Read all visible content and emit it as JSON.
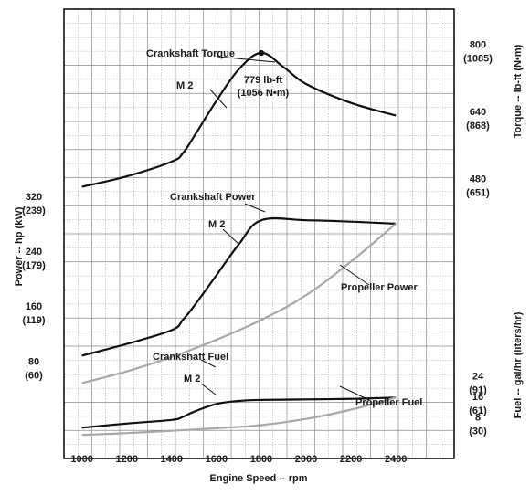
{
  "chart_data": {
    "type": "line",
    "xlabel": "Engine Speed -- rpm",
    "ylabel_left": "Power -- hp (kW)",
    "ylabel_right_top": "Torque -- lb-ft (N•m)",
    "ylabel_right_bottom": "Fuel -- gal/hr (liters/hr)",
    "xlim": [
      920,
      2660
    ],
    "x_ticks": [
      "1000",
      "1200",
      "1400",
      "1600",
      "1800",
      "2000",
      "2200",
      "2400"
    ],
    "grid": true,
    "colors": {
      "crankshaft": "#111111",
      "propeller": "#a8a8a8",
      "frame": "#111111"
    },
    "panels": {
      "torque": {
        "ylim": [
          300,
          840
        ],
        "ticks": [
          {
            "value": 800,
            "label": "800",
            "sub": "(1085)"
          },
          {
            "value": 640,
            "label": "640",
            "sub": "(868)"
          },
          {
            "value": 480,
            "label": "480",
            "sub": "(651)"
          }
        ],
        "series": [
          {
            "name": "Crankshaft Torque",
            "tag": "M 2",
            "style": "crankshaft",
            "x": [
              1000,
              1200,
              1400,
              1450,
              1500,
              1600,
              1700,
              1800,
              1900,
              2000,
              2200,
              2400
            ],
            "y": [
              460,
              485,
              520,
              540,
              580,
              665,
              740,
              779,
              745,
              705,
              660,
              630
            ]
          }
        ],
        "annotation": {
          "line1": "779 lb-ft",
          "line2": "(1056 N•m)",
          "x": 1800,
          "y": 779
        }
      },
      "power": {
        "ylim": [
          30,
          365
        ],
        "ticks": [
          {
            "value": 320,
            "label": "320",
            "sub": "(239)"
          },
          {
            "value": 240,
            "label": "240",
            "sub": "(179)"
          },
          {
            "value": 160,
            "label": "160",
            "sub": "(119)"
          },
          {
            "value": 80,
            "label": "80",
            "sub": "(60)"
          }
        ],
        "series": [
          {
            "name": "Crankshaft Power",
            "tag": "M 2",
            "style": "crankshaft",
            "x": [
              1000,
              1200,
              1400,
              1450,
              1500,
              1600,
              1700,
              1800,
              2000,
              2200,
              2400
            ],
            "y": [
              88,
              105,
              125,
              140,
              160,
              205,
              250,
              285,
              285,
              283,
              280
            ]
          },
          {
            "name": "Propeller Power",
            "style": "propeller",
            "x": [
              1000,
              1200,
              1400,
              1600,
              1800,
              2000,
              2200,
              2400
            ],
            "y": [
              48,
              65,
              86,
              111,
              140,
              176,
              225,
              280
            ]
          }
        ]
      },
      "fuel": {
        "ylim": [
          0,
          33
        ],
        "ticks": [
          {
            "value": 24,
            "label": "24",
            "sub": "(91)"
          },
          {
            "value": 16,
            "label": "16",
            "sub": "(61)"
          },
          {
            "value": 8,
            "label": "8",
            "sub": "(30)"
          }
        ],
        "series": [
          {
            "name": "Crankshaft Fuel",
            "tag": "M 2",
            "style": "crankshaft",
            "x": [
              1000,
              1200,
              1400,
              1450,
              1500,
              1600,
              1700,
              1800,
              2000,
              2200,
              2400
            ],
            "y": [
              3.8,
              5.4,
              6.8,
              8.0,
              10.0,
              13.0,
              14.2,
              14.6,
              14.8,
              15.0,
              15.5
            ]
          },
          {
            "name": "Propeller Fuel",
            "style": "propeller",
            "x": [
              1000,
              1200,
              1400,
              1600,
              1800,
              2000,
              2200,
              2400
            ],
            "y": [
              1.0,
              1.7,
              2.6,
              3.6,
              4.8,
              7.2,
              10.8,
              15.5
            ]
          }
        ]
      }
    }
  }
}
